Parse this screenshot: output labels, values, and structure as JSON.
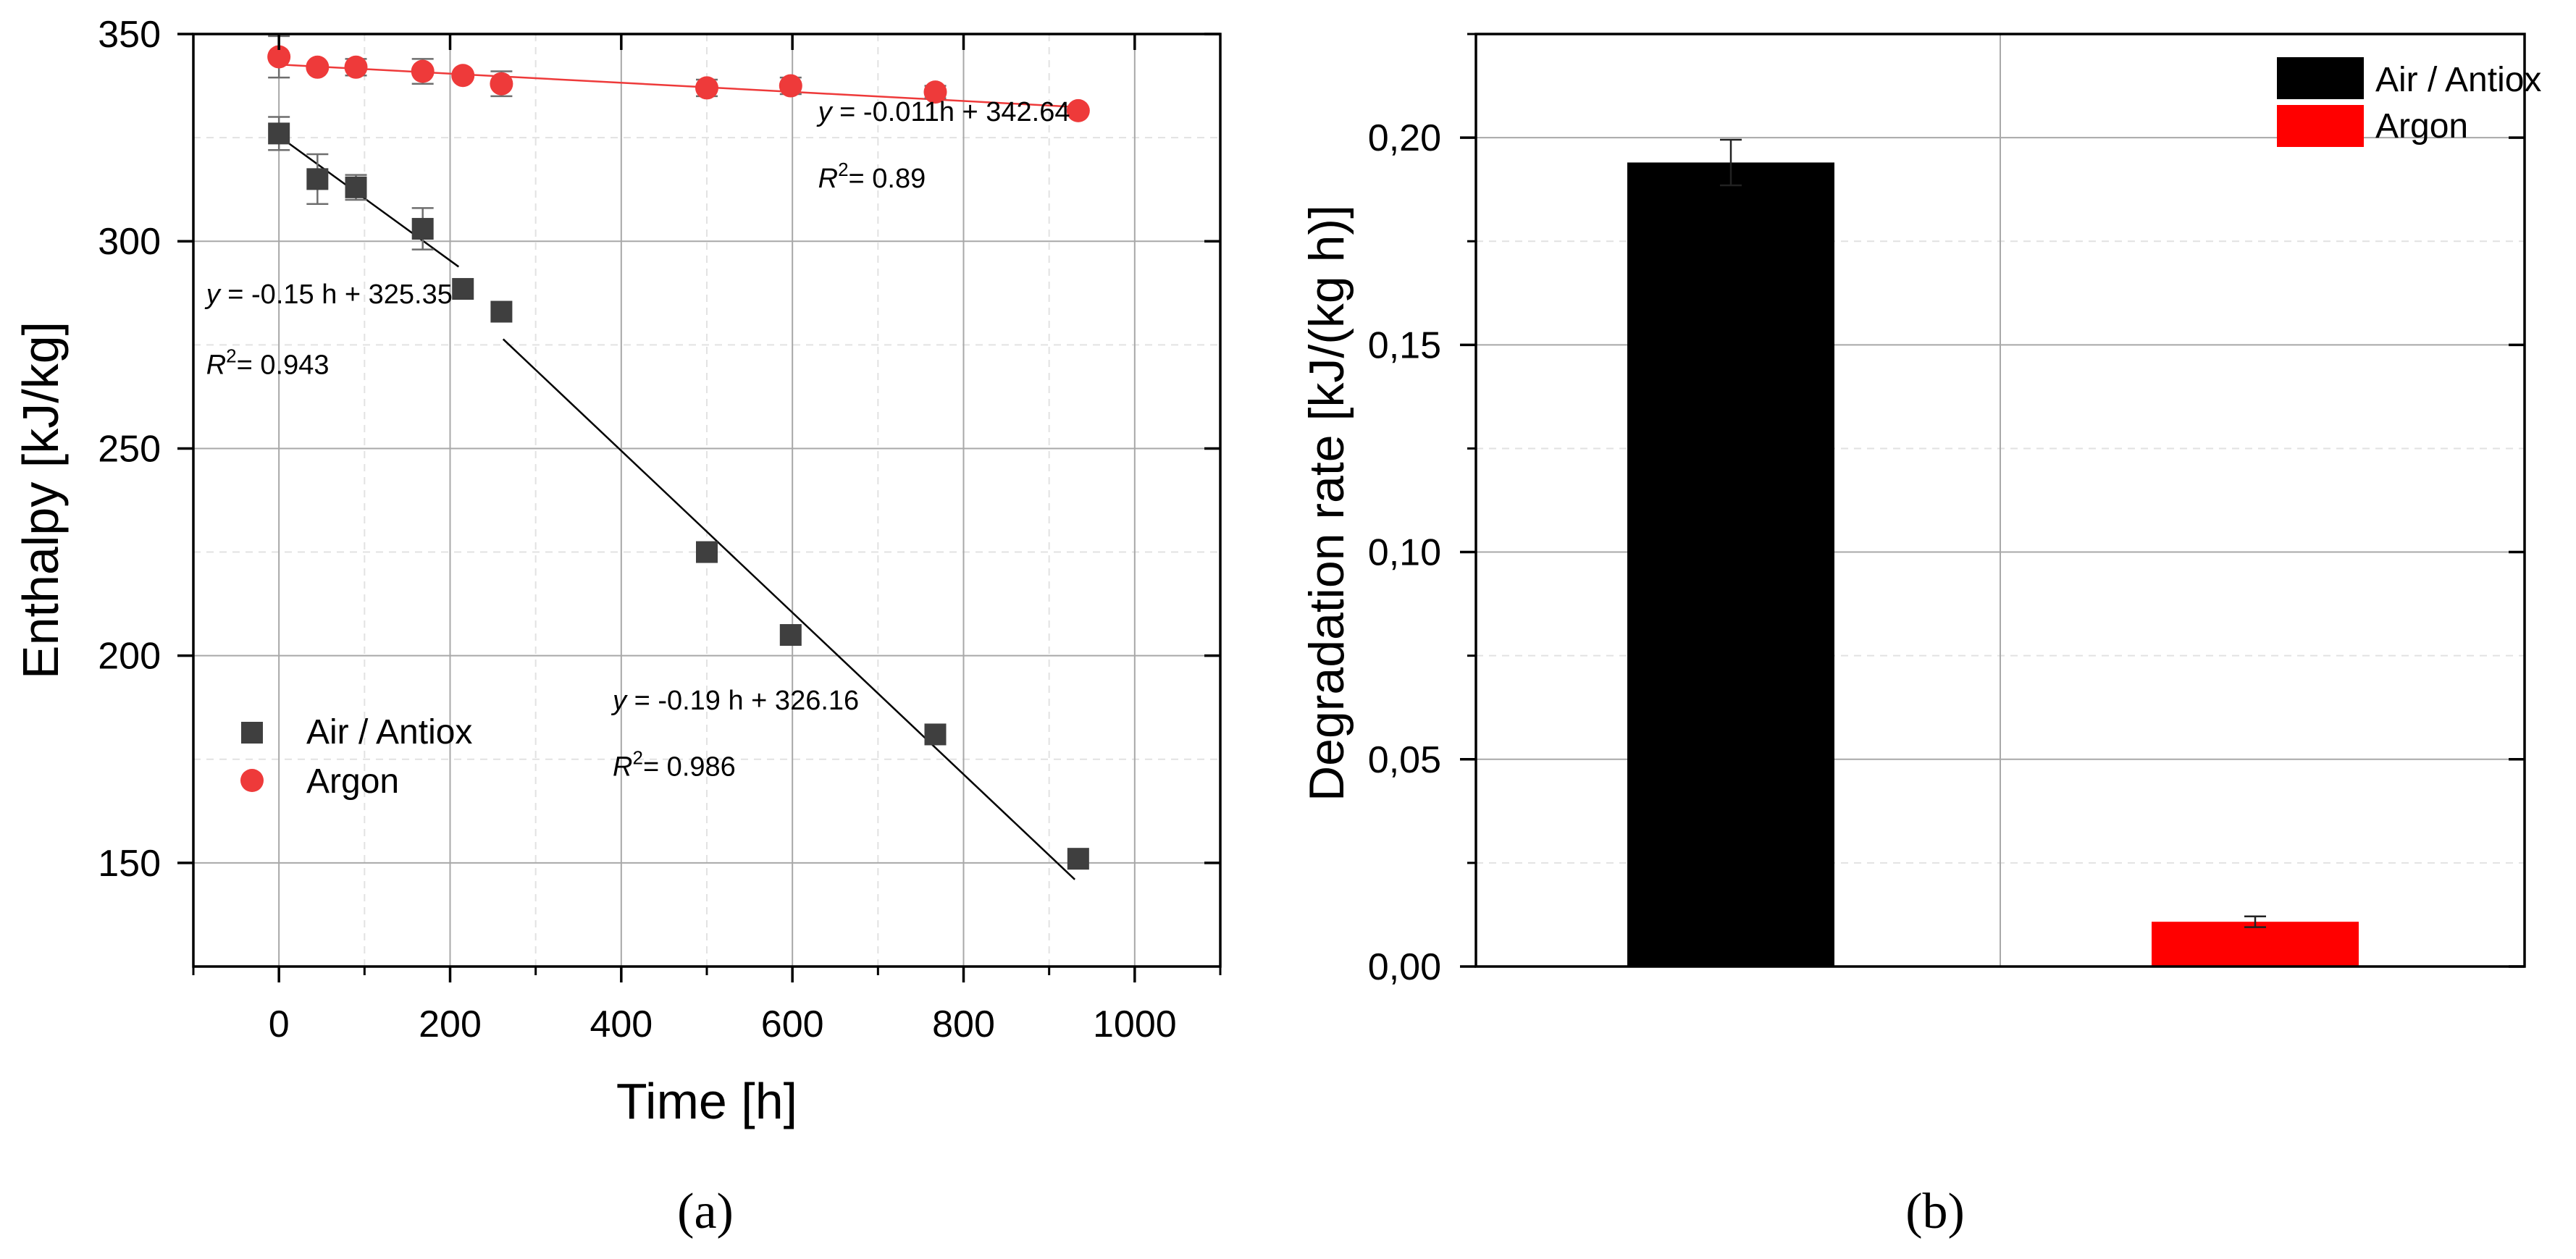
{
  "chart_data": [
    {
      "type": "scatter",
      "panel_label": "a",
      "xlabel": "Time [h]",
      "ylabel": "Enthalpy [kJ/kg]",
      "xlim": [
        -100,
        1100
      ],
      "ylim": [
        125,
        350
      ],
      "xticks": [
        0,
        200,
        400,
        600,
        800,
        1000
      ],
      "xtick_labels": [
        "0",
        "200",
        "400",
        "600",
        "800",
        "1000"
      ],
      "yticks": [
        150,
        200,
        250,
        300,
        350
      ],
      "ytick_labels": [
        "150",
        "200",
        "250",
        "300",
        "350"
      ],
      "legend": "left-center",
      "series": [
        {
          "name": "Air / Antiox",
          "marker": "square",
          "color": "#3f3f3f",
          "x": [
            0,
            45,
            90,
            168,
            215,
            260,
            500,
            598,
            767,
            934
          ],
          "y": [
            326,
            315,
            313,
            303,
            288.5,
            283,
            225,
            205,
            181,
            151
          ],
          "err": [
            4,
            6,
            3,
            5,
            0,
            0,
            0,
            0,
            0,
            0
          ]
        },
        {
          "name": "Argon",
          "marker": "circle",
          "color": "#ee3a3a",
          "x": [
            0,
            45,
            90,
            168,
            215,
            260,
            500,
            598,
            767,
            934
          ],
          "y": [
            344.5,
            342,
            342,
            341,
            340,
            338,
            337,
            337.5,
            336,
            331.5
          ],
          "err": [
            5,
            0,
            2,
            3,
            0,
            3,
            2,
            2,
            1.5,
            0
          ]
        }
      ],
      "fits": [
        {
          "color": "#000000",
          "x": [
            0,
            210
          ],
          "y": [
            325.35,
            293.85
          ]
        },
        {
          "color": "#000000",
          "x": [
            262,
            930
          ],
          "y": [
            276.38,
            146.0
          ]
        },
        {
          "color": "#ee3a3a",
          "x": [
            0,
            940
          ],
          "y": [
            342.64,
            332.3
          ]
        }
      ],
      "annotations": [
        {
          "id": "fit-argon",
          "prefix": "y",
          "equation": " = -0.011h + 342.64",
          "r2": "= 0.89",
          "x": 630,
          "y": 329,
          "r2_y": 313
        },
        {
          "id": "fit-air-early",
          "prefix": "y",
          "equation": " = -0.15 h + 325.35",
          "r2": "= 0.943",
          "x": -85,
          "y": 285,
          "r2_y": 268
        },
        {
          "id": "fit-air-late",
          "prefix": "y",
          "equation": " = -0.19 h + 326.16",
          "r2": "= 0.986",
          "x": 390,
          "y": 187,
          "r2_y": 171
        }
      ]
    },
    {
      "type": "bar",
      "panel_label": "b",
      "xlabel": "",
      "ylabel": "Degradation rate [kJ/(kg h)]",
      "ylim": [
        0,
        0.225
      ],
      "yticks": [
        0,
        0.05,
        0.1,
        0.15,
        0.2
      ],
      "ytick_labels": [
        "0,00",
        "0,05",
        "0,10",
        "0,15",
        "0,20"
      ],
      "categories": [
        "Air / Antiox",
        "Argon"
      ],
      "values": [
        0.194,
        0.0108
      ],
      "errors": [
        0.0055,
        0.0013
      ],
      "colors": [
        "#000000",
        "#ff0000"
      ],
      "legend": "top-right"
    }
  ],
  "captions": {
    "a": "(a)",
    "b": "(b)"
  }
}
